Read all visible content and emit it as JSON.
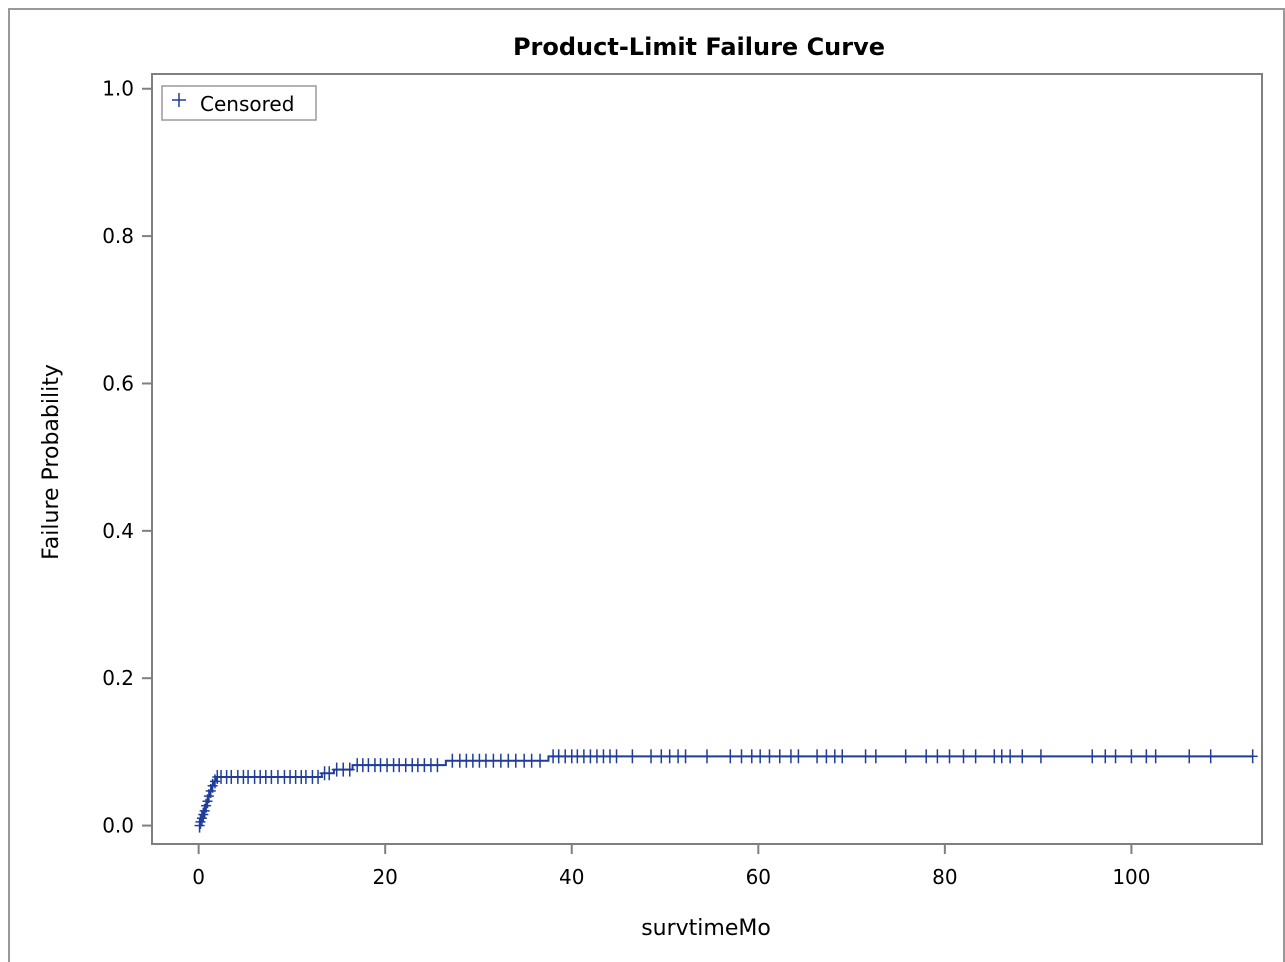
{
  "chart_data": {
    "type": "line",
    "title": "Product-Limit Failure Curve",
    "xlabel": "survtimeMo",
    "ylabel": "Failure Probability",
    "xlim": [
      -5,
      114
    ],
    "ylim": [
      -0.025,
      1.02
    ],
    "x_ticks": [
      0,
      20,
      40,
      60,
      80,
      100
    ],
    "y_ticks": [
      0.0,
      0.2,
      0.4,
      0.6,
      0.8,
      1.0
    ],
    "x_tick_labels": [
      "0",
      "20",
      "40",
      "60",
      "80",
      "100"
    ],
    "y_tick_labels": [
      "0.0",
      "0.2",
      "0.4",
      "0.6",
      "0.8",
      "1.0"
    ],
    "legend": {
      "position": "top-left",
      "entries": [
        {
          "symbol": "+",
          "label": "Censored"
        }
      ]
    },
    "colors": {
      "series": "#1f3d99",
      "axis": "#7f7f7f"
    },
    "series": [
      {
        "step_curve": [
          [
            0,
            0.0
          ],
          [
            0.15,
            0.005
          ],
          [
            0.3,
            0.01
          ],
          [
            0.45,
            0.015
          ],
          [
            0.6,
            0.02
          ],
          [
            0.75,
            0.027
          ],
          [
            0.9,
            0.033
          ],
          [
            1.05,
            0.04
          ],
          [
            1.2,
            0.047
          ],
          [
            1.4,
            0.054
          ],
          [
            1.6,
            0.06
          ],
          [
            1.9,
            0.066
          ],
          [
            13.2,
            0.071
          ],
          [
            14.5,
            0.076
          ],
          [
            16.5,
            0.082
          ],
          [
            26.5,
            0.088
          ],
          [
            37.5,
            0.094
          ],
          [
            113,
            0.094
          ]
        ],
        "censored": [
          {
            "x": 0.1,
            "y": 0.0
          },
          {
            "x": 0.2,
            "y": 0.005
          },
          {
            "x": 0.35,
            "y": 0.01
          },
          {
            "x": 0.5,
            "y": 0.015
          },
          {
            "x": 0.65,
            "y": 0.02
          },
          {
            "x": 0.8,
            "y": 0.027
          },
          {
            "x": 0.95,
            "y": 0.033
          },
          {
            "x": 1.1,
            "y": 0.04
          },
          {
            "x": 1.3,
            "y": 0.047
          },
          {
            "x": 1.5,
            "y": 0.054
          },
          {
            "x": 1.75,
            "y": 0.06
          },
          {
            "x": 2.0,
            "y": 0.066
          },
          {
            "x": 2.4,
            "y": 0.066
          },
          {
            "x": 3.0,
            "y": 0.066
          },
          {
            "x": 3.5,
            "y": 0.066
          },
          {
            "x": 4.2,
            "y": 0.066
          },
          {
            "x": 4.8,
            "y": 0.066
          },
          {
            "x": 5.3,
            "y": 0.066
          },
          {
            "x": 6.0,
            "y": 0.066
          },
          {
            "x": 6.6,
            "y": 0.066
          },
          {
            "x": 7.2,
            "y": 0.066
          },
          {
            "x": 7.8,
            "y": 0.066
          },
          {
            "x": 8.5,
            "y": 0.066
          },
          {
            "x": 9.2,
            "y": 0.066
          },
          {
            "x": 9.8,
            "y": 0.066
          },
          {
            "x": 10.4,
            "y": 0.066
          },
          {
            "x": 11.0,
            "y": 0.066
          },
          {
            "x": 11.5,
            "y": 0.066
          },
          {
            "x": 12.2,
            "y": 0.066
          },
          {
            "x": 12.8,
            "y": 0.066
          },
          {
            "x": 13.5,
            "y": 0.071
          },
          {
            "x": 14.0,
            "y": 0.071
          },
          {
            "x": 14.8,
            "y": 0.076
          },
          {
            "x": 15.5,
            "y": 0.076
          },
          {
            "x": 16.2,
            "y": 0.076
          },
          {
            "x": 17.0,
            "y": 0.082
          },
          {
            "x": 17.6,
            "y": 0.082
          },
          {
            "x": 18.2,
            "y": 0.082
          },
          {
            "x": 18.9,
            "y": 0.082
          },
          {
            "x": 19.5,
            "y": 0.082
          },
          {
            "x": 20.2,
            "y": 0.082
          },
          {
            "x": 20.9,
            "y": 0.082
          },
          {
            "x": 21.5,
            "y": 0.082
          },
          {
            "x": 22.2,
            "y": 0.082
          },
          {
            "x": 22.9,
            "y": 0.082
          },
          {
            "x": 23.5,
            "y": 0.082
          },
          {
            "x": 24.2,
            "y": 0.082
          },
          {
            "x": 24.9,
            "y": 0.082
          },
          {
            "x": 25.6,
            "y": 0.082
          },
          {
            "x": 27.2,
            "y": 0.088
          },
          {
            "x": 28.0,
            "y": 0.088
          },
          {
            "x": 28.7,
            "y": 0.088
          },
          {
            "x": 29.4,
            "y": 0.088
          },
          {
            "x": 30.1,
            "y": 0.088
          },
          {
            "x": 30.8,
            "y": 0.088
          },
          {
            "x": 31.6,
            "y": 0.088
          },
          {
            "x": 32.4,
            "y": 0.088
          },
          {
            "x": 33.2,
            "y": 0.088
          },
          {
            "x": 34.0,
            "y": 0.088
          },
          {
            "x": 34.9,
            "y": 0.088
          },
          {
            "x": 35.7,
            "y": 0.088
          },
          {
            "x": 36.6,
            "y": 0.088
          },
          {
            "x": 38.0,
            "y": 0.094
          },
          {
            "x": 38.6,
            "y": 0.094
          },
          {
            "x": 39.3,
            "y": 0.094
          },
          {
            "x": 40.0,
            "y": 0.094
          },
          {
            "x": 40.6,
            "y": 0.094
          },
          {
            "x": 41.3,
            "y": 0.094
          },
          {
            "x": 42.0,
            "y": 0.094
          },
          {
            "x": 42.7,
            "y": 0.094
          },
          {
            "x": 43.4,
            "y": 0.094
          },
          {
            "x": 44.1,
            "y": 0.094
          },
          {
            "x": 44.8,
            "y": 0.094
          },
          {
            "x": 46.5,
            "y": 0.094
          },
          {
            "x": 48.5,
            "y": 0.094
          },
          {
            "x": 49.6,
            "y": 0.094
          },
          {
            "x": 50.5,
            "y": 0.094
          },
          {
            "x": 51.4,
            "y": 0.094
          },
          {
            "x": 52.2,
            "y": 0.094
          },
          {
            "x": 54.5,
            "y": 0.094
          },
          {
            "x": 57.0,
            "y": 0.094
          },
          {
            "x": 58.2,
            "y": 0.094
          },
          {
            "x": 59.3,
            "y": 0.094
          },
          {
            "x": 60.2,
            "y": 0.094
          },
          {
            "x": 61.2,
            "y": 0.094
          },
          {
            "x": 62.3,
            "y": 0.094
          },
          {
            "x": 63.5,
            "y": 0.094
          },
          {
            "x": 64.3,
            "y": 0.094
          },
          {
            "x": 66.3,
            "y": 0.094
          },
          {
            "x": 67.3,
            "y": 0.094
          },
          {
            "x": 68.2,
            "y": 0.094
          },
          {
            "x": 69.0,
            "y": 0.094
          },
          {
            "x": 71.5,
            "y": 0.094
          },
          {
            "x": 72.6,
            "y": 0.094
          },
          {
            "x": 75.8,
            "y": 0.094
          },
          {
            "x": 78.0,
            "y": 0.094
          },
          {
            "x": 79.2,
            "y": 0.094
          },
          {
            "x": 80.5,
            "y": 0.094
          },
          {
            "x": 82.0,
            "y": 0.094
          },
          {
            "x": 83.3,
            "y": 0.094
          },
          {
            "x": 85.3,
            "y": 0.094
          },
          {
            "x": 86.1,
            "y": 0.094
          },
          {
            "x": 87.0,
            "y": 0.094
          },
          {
            "x": 88.3,
            "y": 0.094
          },
          {
            "x": 90.3,
            "y": 0.094
          },
          {
            "x": 95.8,
            "y": 0.094
          },
          {
            "x": 97.2,
            "y": 0.094
          },
          {
            "x": 98.3,
            "y": 0.094
          },
          {
            "x": 100.0,
            "y": 0.094
          },
          {
            "x": 101.6,
            "y": 0.094
          },
          {
            "x": 102.6,
            "y": 0.094
          },
          {
            "x": 106.2,
            "y": 0.094
          },
          {
            "x": 108.5,
            "y": 0.094
          },
          {
            "x": 113.0,
            "y": 0.094
          }
        ]
      }
    ]
  }
}
